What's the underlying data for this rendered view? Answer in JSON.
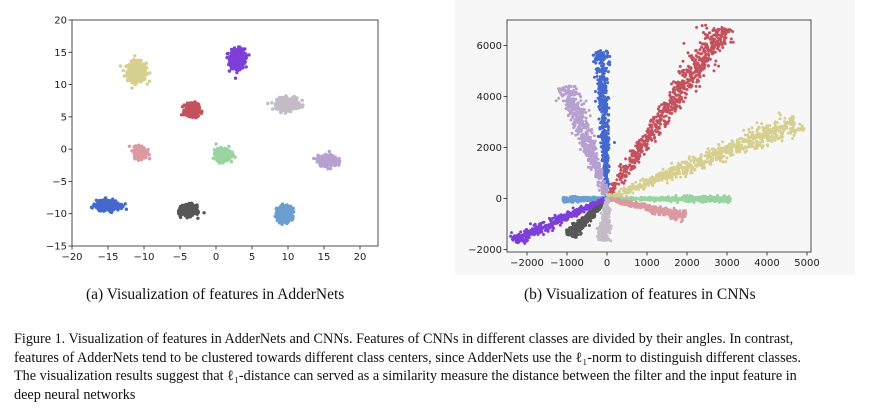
{
  "chart_data": [
    {
      "type": "scatter",
      "title": "",
      "xlabel": "",
      "ylabel": "",
      "xlim": [
        -20,
        22.5
      ],
      "ylim": [
        -15,
        20
      ],
      "xticks": [
        "−20",
        "−15",
        "−10",
        "−5",
        "0",
        "5",
        "10",
        "15",
        "20"
      ],
      "yticks": [
        "20",
        "15",
        "10",
        "5",
        "0",
        "−5",
        "−10",
        "−15"
      ],
      "grid": false,
      "series": [
        {
          "color": "#d6cf8e",
          "center": [
            -11,
            12
          ],
          "spread": [
            1.3,
            1.5
          ],
          "count": 420
        },
        {
          "color": "#7d3fd8",
          "center": [
            3,
            14
          ],
          "spread": [
            1.0,
            1.5
          ],
          "count": 420
        },
        {
          "color": "#c3bbc6",
          "center": [
            10,
            7
          ],
          "spread": [
            1.5,
            0.9
          ],
          "count": 420
        },
        {
          "color": "#c4525e",
          "center": [
            -3.3,
            6
          ],
          "spread": [
            0.9,
            0.9
          ],
          "count": 380
        },
        {
          "color": "#db9aa0",
          "center": [
            -10.5,
            -0.5
          ],
          "spread": [
            0.9,
            0.9
          ],
          "count": 300
        },
        {
          "color": "#98d4a0",
          "center": [
            1,
            -0.8
          ],
          "spread": [
            1.0,
            0.9
          ],
          "count": 320
        },
        {
          "color": "#b6a0d0",
          "center": [
            15.5,
            -1.8
          ],
          "spread": [
            1.3,
            0.8
          ],
          "count": 360
        },
        {
          "color": "#4468cc",
          "center": [
            -15,
            -8.7
          ],
          "spread": [
            1.6,
            0.7
          ],
          "count": 440
        },
        {
          "color": "#575757",
          "center": [
            -3.8,
            -9.5
          ],
          "spread": [
            1.0,
            0.8
          ],
          "count": 380
        },
        {
          "color": "#6a9ed0",
          "center": [
            9.5,
            -10
          ],
          "spread": [
            1.0,
            1.2
          ],
          "count": 380
        }
      ]
    },
    {
      "type": "scatter",
      "title": "",
      "xlabel": "",
      "ylabel": "",
      "xlim": [
        -2500,
        5100
      ],
      "ylim": [
        -2100,
        7000
      ],
      "xticks": [
        "−2000",
        "−1000",
        "0",
        "1000",
        "2000",
        "3000",
        "4000",
        "5000"
      ],
      "yticks": [
        "6000",
        "4000",
        "2000",
        "0",
        "−2000"
      ],
      "grid": false,
      "series": [
        {
          "color": "#4468cc",
          "end": [
            -150,
            5800
          ],
          "width": 70,
          "count": 500
        },
        {
          "color": "#b6a0d0",
          "end": [
            -1000,
            4400
          ],
          "width": 110,
          "count": 500
        },
        {
          "color": "#c4525e",
          "end": [
            2900,
            6700
          ],
          "width": 140,
          "count": 700
        },
        {
          "color": "#d6cf8e",
          "end": [
            4800,
            3000
          ],
          "width": 160,
          "count": 700
        },
        {
          "color": "#98d4a0",
          "end": [
            3100,
            -50
          ],
          "width": 50,
          "count": 400
        },
        {
          "color": "#db9aa0",
          "end": [
            1950,
            -700
          ],
          "width": 70,
          "count": 400
        },
        {
          "color": "#6a9ed0",
          "end": [
            -1100,
            -50
          ],
          "width": 50,
          "count": 300
        },
        {
          "color": "#575757",
          "end": [
            -950,
            -1450
          ],
          "width": 70,
          "count": 360
        },
        {
          "color": "#7d3fd8",
          "end": [
            -2350,
            -1650
          ],
          "width": 80,
          "count": 460
        },
        {
          "color": "#c3bbc6",
          "end": [
            -80,
            -1650
          ],
          "width": 60,
          "count": 300
        }
      ]
    }
  ],
  "subcaptions": {
    "a": "(a) Visualization of features in AdderNets",
    "b": "(b) Visualization of features in CNNs"
  },
  "caption": {
    "line1": "Figure 1. Visualization of features in AdderNets and CNNs. Features of CNNs in different classes are divided by their angles. In contrast,",
    "line2": "features of AdderNets tend to be clustered towards different class centers, since AdderNets use the ℓ₁-norm to distinguish different classes.",
    "line3": "The visualization results suggest that ℓ₁-distance can served as a similarity measure the distance between the filter and the input feature in",
    "line4": "deep neural networks"
  }
}
